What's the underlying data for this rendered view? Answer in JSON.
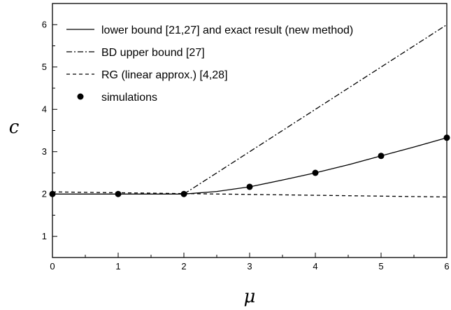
{
  "chart_data": {
    "type": "line",
    "xlabel": "μ",
    "ylabel": "c",
    "xlim": [
      0,
      6
    ],
    "ylim": [
      0.5,
      6.5
    ],
    "x_ticks": [
      "0",
      "1",
      "2",
      "3",
      "4",
      "5",
      "6"
    ],
    "y_ticks": [
      "1",
      "2",
      "3",
      "4",
      "5",
      "6"
    ],
    "legend_position": "top-left",
    "series": [
      {
        "name": "lower bound [21,27] and exact result (new method)",
        "style": "solid",
        "x": [
          0,
          1,
          2,
          2.5,
          3,
          3.5,
          4,
          4.5,
          5,
          5.5,
          6
        ],
        "y": [
          2,
          2,
          2,
          2.06,
          2.17,
          2.33,
          2.5,
          2.69,
          2.9,
          3.11,
          3.33
        ]
      },
      {
        "name": "BD upper bound [27]",
        "style": "dashdot",
        "x": [
          2,
          6
        ],
        "y": [
          2,
          6
        ]
      },
      {
        "name": "RG (linear approx.) [4,28]",
        "style": "dashed",
        "x": [
          0,
          6
        ],
        "y": [
          2.05,
          1.93
        ]
      },
      {
        "name": "simulations",
        "style": "markers",
        "x": [
          0,
          1,
          2,
          3,
          4,
          5,
          6
        ],
        "y": [
          2.0,
          2.0,
          2.0,
          2.17,
          2.5,
          2.9,
          3.33
        ]
      }
    ]
  }
}
